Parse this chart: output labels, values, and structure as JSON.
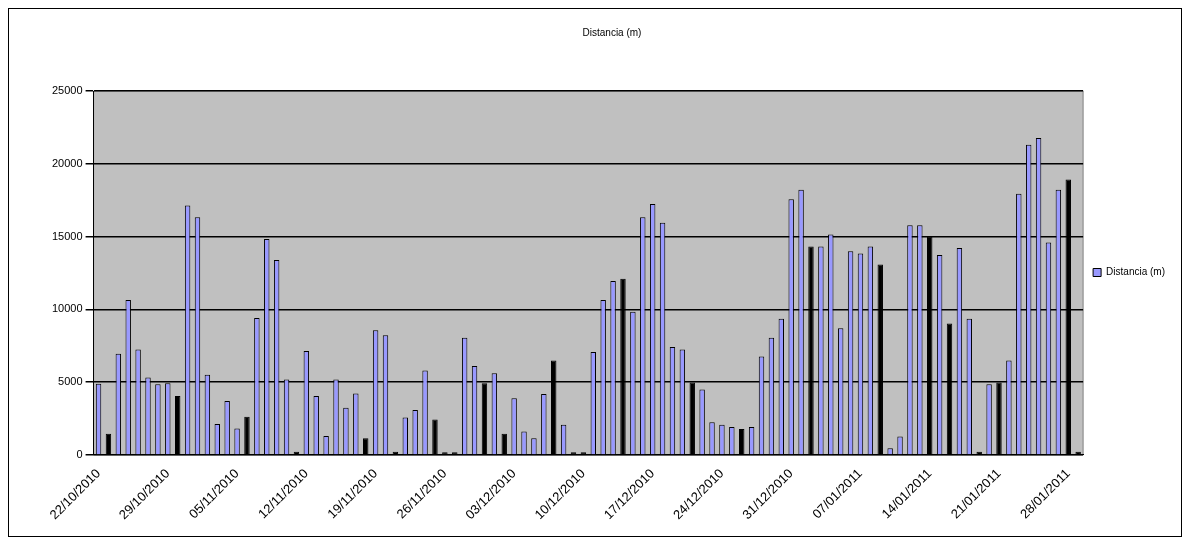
{
  "chart_data": {
    "type": "bar",
    "title": "Distancia (m)",
    "categories": [
      "22/10/2010",
      null,
      null,
      null,
      null,
      null,
      null,
      "29/10/2010",
      null,
      null,
      null,
      null,
      null,
      null,
      "05/11/2010",
      null,
      null,
      null,
      null,
      null,
      null,
      "12/11/2010",
      null,
      null,
      null,
      null,
      null,
      null,
      "19/11/2010",
      null,
      null,
      null,
      null,
      null,
      null,
      "26/11/2010",
      null,
      null,
      null,
      null,
      null,
      null,
      "03/12/2010",
      null,
      null,
      null,
      null,
      null,
      null,
      "10/12/2010",
      null,
      null,
      null,
      null,
      null,
      null,
      "17/12/2010",
      null,
      null,
      null,
      null,
      null,
      null,
      "24/12/2010",
      null,
      null,
      null,
      null,
      null,
      null,
      "31/12/2010",
      null,
      null,
      null,
      null,
      null,
      null,
      "07/01/2011",
      null,
      null,
      null,
      null,
      null,
      null,
      "14/01/2011",
      null,
      null,
      null,
      null,
      null,
      null,
      "21/01/2011",
      null,
      null,
      null,
      null,
      null,
      null,
      "28/01/2011",
      null
    ],
    "series": [
      {
        "name": "Distancia (m)",
        "color": "#9999ff",
        "values": [
          4900,
          1460,
          6950,
          10650,
          7240,
          5320,
          4860,
          4920,
          4050,
          17140,
          16320,
          5510,
          2130,
          3700,
          1810,
          2620,
          9400,
          14840,
          13400,
          5190,
          220,
          7140,
          4050,
          1300,
          5190,
          3240,
          4220,
          1140,
          8570,
          8220,
          220,
          2570,
          3080,
          5810,
          2430,
          190,
          190,
          8050,
          6110,
          4920,
          5620,
          1460,
          3890,
          1620,
          1140,
          4190,
          6490,
          2080,
          190,
          190,
          7080,
          10650,
          11950,
          12110,
          9840,
          16320,
          17240,
          15950,
          7410,
          7240,
          4970,
          4490,
          2240,
          2080,
          1920,
          1780,
          1920,
          6760,
          8050,
          9350,
          17570,
          18220,
          14320,
          14320,
          15140,
          8700,
          14000,
          13840,
          14320,
          13080,
          460,
          1270,
          15780,
          15780,
          15030,
          13730,
          9030,
          14220,
          9350,
          220,
          4860,
          4970,
          6490,
          17950,
          21300,
          21780,
          14590,
          18220,
          18920,
          220
        ],
        "colors": [
          "#9999ff",
          "#000000",
          "#9999ff",
          "#9999ff",
          "#9999ff",
          "#9999ff",
          "#9999ff",
          "#9999ff",
          "#000000",
          "#9999ff",
          "#9999ff",
          "#9999ff",
          "#9999ff",
          "#9999ff",
          "#9999ff",
          "#000000",
          "#9999ff",
          "#9999ff",
          "#9999ff",
          "#9999ff",
          "#000000",
          "#9999ff",
          "#9999ff",
          "#9999ff",
          "#9999ff",
          "#9999ff",
          "#9999ff",
          "#000000",
          "#9999ff",
          "#9999ff",
          "#000000",
          "#9999ff",
          "#9999ff",
          "#9999ff",
          "#000000",
          "#000000",
          "#000000",
          "#9999ff",
          "#9999ff",
          "#000000",
          "#9999ff",
          "#000000",
          "#9999ff",
          "#9999ff",
          "#9999ff",
          "#9999ff",
          "#000000",
          "#9999ff",
          "#000000",
          "#000000",
          "#9999ff",
          "#9999ff",
          "#9999ff",
          "#000000",
          "#9999ff",
          "#9999ff",
          "#9999ff",
          "#9999ff",
          "#9999ff",
          "#9999ff",
          "#000000",
          "#9999ff",
          "#9999ff",
          "#9999ff",
          "#9999ff",
          "#000000",
          "#9999ff",
          "#9999ff",
          "#9999ff",
          "#9999ff",
          "#9999ff",
          "#9999ff",
          "#000000",
          "#9999ff",
          "#9999ff",
          "#9999ff",
          "#9999ff",
          "#9999ff",
          "#9999ff",
          "#000000",
          "#9999ff",
          "#9999ff",
          "#9999ff",
          "#9999ff",
          "#000000",
          "#9999ff",
          "#000000",
          "#9999ff",
          "#9999ff",
          "#000000",
          "#9999ff",
          "#000000",
          "#9999ff",
          "#9999ff",
          "#9999ff",
          "#9999ff",
          "#9999ff",
          "#9999ff",
          "#000000",
          "#000000"
        ]
      }
    ],
    "ylim": [
      0,
      25000
    ],
    "yticks": [
      0,
      5000,
      10000,
      15000,
      20000,
      25000
    ],
    "grid": "y",
    "legend": "right"
  }
}
